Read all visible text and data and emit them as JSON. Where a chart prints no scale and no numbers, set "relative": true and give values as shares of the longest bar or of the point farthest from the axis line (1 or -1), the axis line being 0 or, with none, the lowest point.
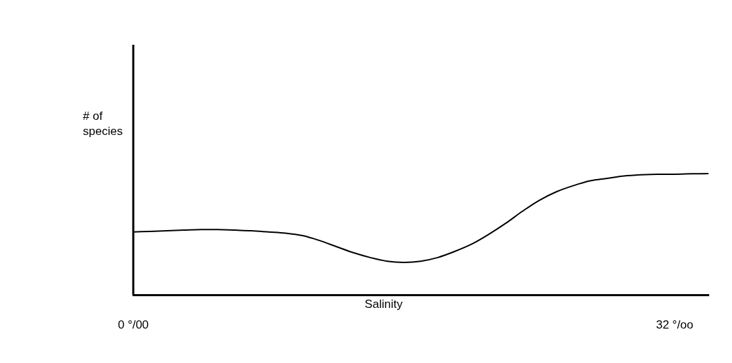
{
  "chart_data": {
    "type": "line",
    "xlabel": "Salinity",
    "ylabel": "# of\nspecies",
    "relative": true,
    "categories": [
      "0 °/00",
      null,
      null,
      null,
      null,
      null,
      null,
      null,
      null,
      null,
      null,
      null,
      null,
      null,
      null,
      null,
      null,
      null,
      null,
      null,
      null,
      null,
      null,
      null,
      null,
      null,
      null,
      null,
      null,
      null,
      null,
      null,
      "32 °/oo",
      null,
      null
    ],
    "values": [
      0.52,
      0.525,
      0.53,
      0.535,
      0.54,
      0.54,
      0.535,
      0.53,
      0.52,
      0.51,
      0.49,
      0.45,
      0.4,
      0.35,
      0.31,
      0.28,
      0.27,
      0.28,
      0.31,
      0.36,
      0.42,
      0.5,
      0.59,
      0.69,
      0.78,
      0.85,
      0.9,
      0.94,
      0.96,
      0.98,
      0.99,
      0.995,
      0.995,
      0.998,
      1
    ],
    "color": "#000000",
    "grid": false,
    "legend": false,
    "marker": "none",
    "line_style": "solid",
    "tick_labels": "x"
  }
}
